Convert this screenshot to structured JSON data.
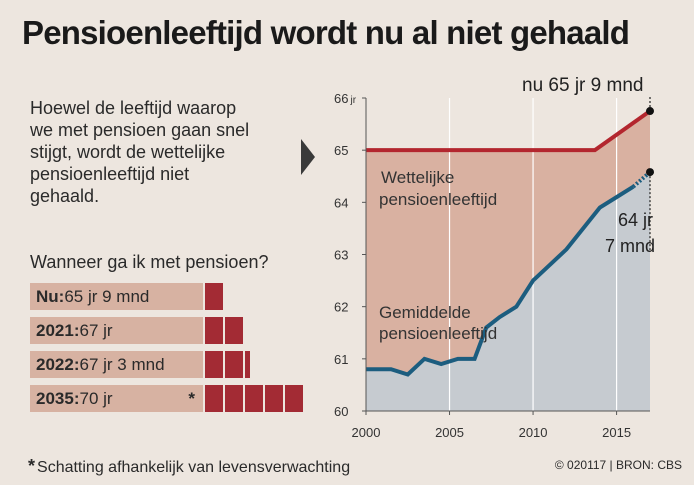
{
  "title": "Pensioenleeftijd wordt nu al niet gehaald",
  "intro": {
    "lines": [
      "Hoewel de leeftijd waarop",
      "we met pensioen gaan snel",
      "stijgt, wordt de wettelijke",
      "pensioenleeftijd niet",
      "gehaald."
    ]
  },
  "question": "Wanneer ga ik met pensioen?",
  "retirement_bars": [
    {
      "label_bold": "Nu:",
      "label_rest": " 65 jr 9 mnd",
      "extra_years": 0.75,
      "star": ""
    },
    {
      "label_bold": "2021:",
      "label_rest": " 67 jr",
      "extra_years": 2,
      "star": ""
    },
    {
      "label_bold": "2022:",
      "label_rest": " 67 jr 3 mnd",
      "extra_years": 2.25,
      "star": ""
    },
    {
      "label_bold": "2035:",
      "label_rest": " 70 jr",
      "extra_years": 5,
      "star": "*"
    }
  ],
  "footnote": {
    "marker": "*",
    "text": "Schatting afhankelijk van levensverwachting"
  },
  "source": "© 020117 | BRON: CBS",
  "chart_data": {
    "type": "line",
    "xlim": [
      2000,
      2017
    ],
    "ylim": [
      60,
      66
    ],
    "x_ticks": [
      2000,
      2005,
      2010,
      2015
    ],
    "y_ticks": [
      60,
      61,
      62,
      63,
      64,
      65,
      66
    ],
    "y_unit_label": "jr",
    "series": [
      {
        "name": "Wettelijke pensioenleeftijd",
        "color": "#b3262e",
        "x": [
          2000,
          2013.7,
          2017
        ],
        "y": [
          65,
          65,
          65.75
        ]
      },
      {
        "name": "Gemiddelde pensioenleeftijd",
        "color": "#1c5d7f",
        "x": [
          2000,
          2001.5,
          2002.5,
          2003.5,
          2004.5,
          2005.5,
          2006.5,
          2007.2,
          2008,
          2009,
          2010,
          2011,
          2012,
          2013,
          2014,
          2015,
          2016
        ],
        "y": [
          60.8,
          60.8,
          60.7,
          61.0,
          60.9,
          61.0,
          61.0,
          61.6,
          61.8,
          62.0,
          62.5,
          62.8,
          63.1,
          63.5,
          63.9,
          64.1,
          64.3
        ],
        "projection": {
          "x": [
            2016,
            2017
          ],
          "y": [
            64.3,
            64.58
          ]
        }
      }
    ],
    "annotations": {
      "top_value": "nu 65 jr 9 mnd",
      "avg_value_1": "64 jr",
      "avg_value_2": "7 mnd",
      "legal_label_1": "Wettelijke",
      "legal_label_2": "pensioenleeftijd",
      "avg_label_1": "Gemiddelde",
      "avg_label_2": "pensioenleeftijd"
    },
    "colors": {
      "legal_area": "#d9b1a1",
      "avg_area": "#c6cbd0",
      "legal_line": "#b3262e",
      "avg_line": "#1c5d7f",
      "bar_block": "#a32b34"
    }
  }
}
